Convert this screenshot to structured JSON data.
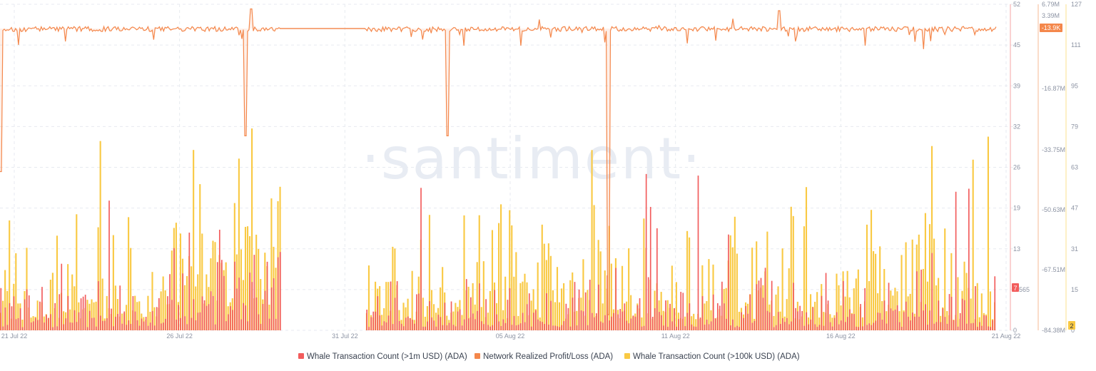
{
  "watermark": "·santiment·",
  "colors": {
    "whale_1m": "#f25c5c",
    "profit_loss": "#f4874b",
    "whale_100k": "#f9c943",
    "grid": "#e7eaf0",
    "tick_text": "#8c93a3",
    "badge_text": "#ffffff",
    "axis_text_dark": "#2d3342"
  },
  "chart_data": {
    "type": "bar",
    "x_ticks": [
      "21 Jul 22",
      "26 Jul 22",
      "31 Jul 22",
      "05 Aug 22",
      "11 Aug 22",
      "16 Aug 22",
      "21 Aug 22"
    ],
    "series": [
      {
        "name": "Whale Transaction Count (>1m USD) (ADA)",
        "chart": "bar",
        "axis": "y1",
        "axis_ticks": [
          "52",
          "45",
          "39",
          "32",
          "26",
          "19",
          "13",
          "6",
          "0"
        ],
        "ylim": [
          0,
          52
        ],
        "latest_value": "7",
        "gap": [
          "31 Jul 22",
          "04 Aug 22"
        ]
      },
      {
        "name": "Network Realized Profit/Loss (ADA)",
        "chart": "line",
        "axis": "y2",
        "axis_ticks": [
          "6.79M",
          "3.39M",
          "-16.87M",
          "-33.75M",
          "-50.63M",
          "-67.51M",
          "-84.38M"
        ],
        "ylim": [
          -84380000,
          6790000
        ],
        "latest_value": "-13.9K",
        "typical_value": 0
      },
      {
        "name": "Whale Transaction Count (>100k USD) (ADA)",
        "chart": "bar",
        "axis": "y3",
        "axis_ticks": [
          "127",
          "111",
          "95",
          "79",
          "63",
          "47",
          "31",
          "15",
          "0"
        ],
        "ylim": [
          0,
          127
        ],
        "latest_value": "2",
        "gap": [
          "31 Jul 22",
          "04 Aug 22"
        ]
      }
    ],
    "overlap_value": "565",
    "grid": true,
    "legend_position": "bottom"
  }
}
